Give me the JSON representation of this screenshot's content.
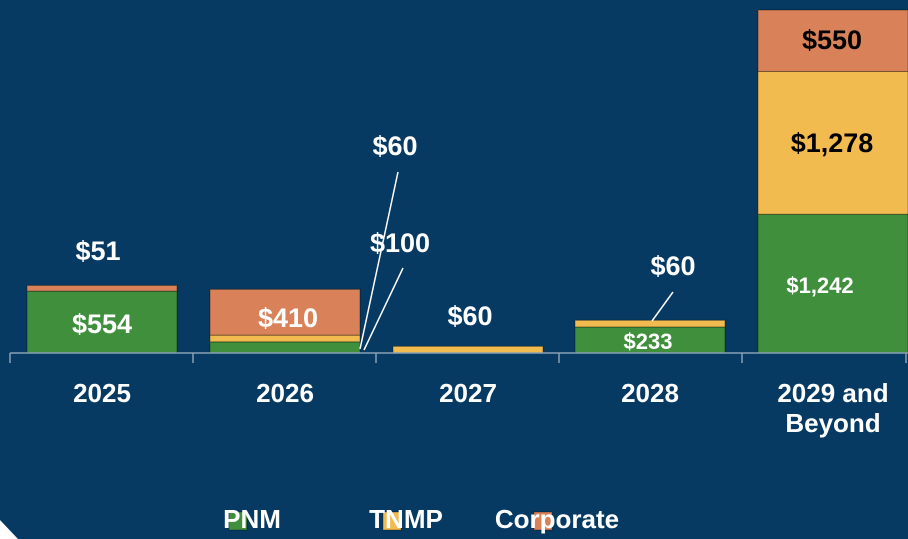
{
  "chart_data": {
    "type": "stacked-bar",
    "categories": [
      "2025",
      "2026",
      "2027",
      "2028",
      "2029 and Beyond"
    ],
    "series": [
      {
        "name": "PNM",
        "color": "#3f8f3c",
        "values": [
          554,
          100,
          null,
          233,
          1242
        ],
        "value_labels": [
          "$554",
          "$100",
          null,
          "$233",
          "$1,242"
        ]
      },
      {
        "name": "TNMP",
        "color": "#f2bb50",
        "values": [
          null,
          60,
          60,
          60,
          1278
        ],
        "value_labels": [
          null,
          "$60",
          "$60",
          "$60",
          "$1,278"
        ]
      },
      {
        "name": "Corporate",
        "color": "#d9825a",
        "values": [
          51,
          410,
          null,
          null,
          550
        ],
        "value_labels": [
          "$51",
          "$410",
          null,
          null,
          "$550"
        ]
      }
    ]
  }
}
